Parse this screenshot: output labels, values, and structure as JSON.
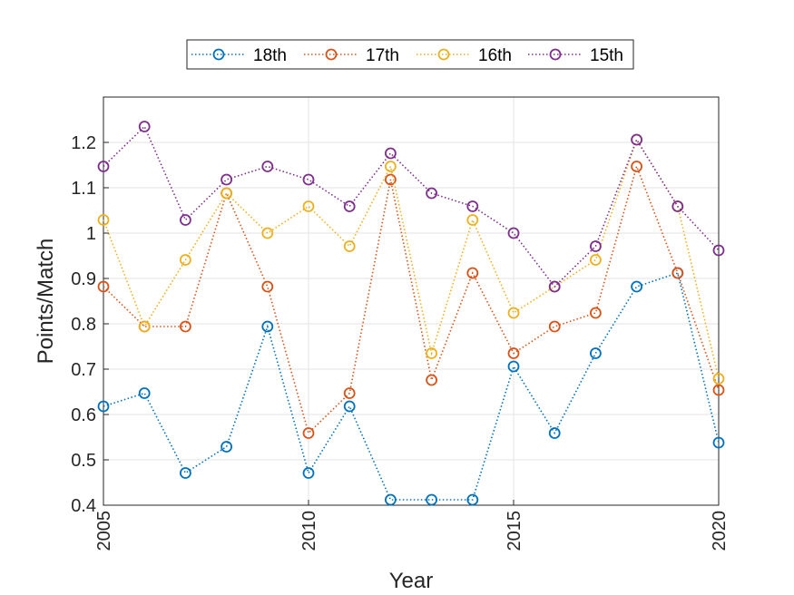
{
  "chart_data": {
    "type": "line",
    "xlabel": "Year",
    "ylabel": "Points/Match",
    "xlim": [
      2005,
      2020
    ],
    "ylim": [
      0.4,
      1.3
    ],
    "xticks": [
      "2005",
      "2010",
      "2015",
      "2020"
    ],
    "yticks": [
      "0.4",
      "0.5",
      "0.6",
      "0.7",
      "0.8",
      "0.9",
      "1",
      "1.1",
      "1.2"
    ],
    "grid": true,
    "legend_position": "top-center",
    "x": [
      2005,
      2006,
      2007,
      2008,
      2009,
      2010,
      2011,
      2012,
      2013,
      2014,
      2015,
      2016,
      2017,
      2018,
      2019,
      2020
    ],
    "series": [
      {
        "name": "18th",
        "color": "#0072BD",
        "values": [
          0.618,
          0.647,
          0.471,
          0.529,
          0.794,
          0.471,
          0.618,
          0.412,
          0.412,
          0.412,
          0.706,
          0.559,
          0.735,
          0.882,
          0.912,
          0.538
        ]
      },
      {
        "name": "17th",
        "color": "#D95319",
        "values": [
          0.882,
          0.794,
          0.794,
          1.088,
          0.882,
          0.559,
          0.647,
          1.118,
          0.676,
          0.912,
          0.735,
          0.794,
          0.824,
          1.147,
          0.912,
          0.654
        ]
      },
      {
        "name": "16th",
        "color": "#EDB120",
        "values": [
          1.029,
          0.794,
          0.941,
          1.088,
          1.0,
          1.059,
          0.971,
          1.147,
          0.735,
          1.029,
          0.824,
          0.882,
          0.941,
          1.206,
          1.059,
          0.679
        ]
      },
      {
        "name": "15th",
        "color": "#7E2F8E",
        "values": [
          1.147,
          1.235,
          1.029,
          1.118,
          1.147,
          1.118,
          1.059,
          1.176,
          1.088,
          1.059,
          1.0,
          0.882,
          0.971,
          1.206,
          1.059,
          0.962
        ]
      }
    ]
  }
}
